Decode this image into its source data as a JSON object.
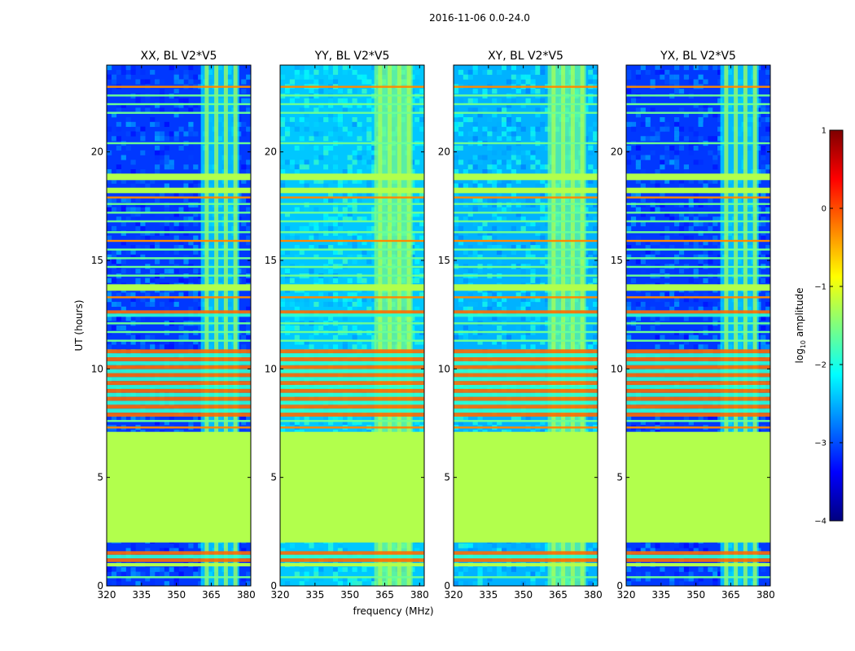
{
  "figure": {
    "suptitle": "2016-11-06 0.0-24.0",
    "xlabel": "frequency (MHz)",
    "ylabel": "UT (hours)"
  },
  "colorbar": {
    "label": "log",
    "label_sub": "10",
    "label_rest": " amplitude",
    "range": [
      -4,
      1
    ],
    "ticks": [
      1,
      0,
      -1,
      -2,
      -3,
      -4
    ],
    "tick_labels": [
      "1",
      "0",
      "−1",
      "−2",
      "−3",
      "−4"
    ],
    "colormap": "jet",
    "stops": [
      "#00007f",
      "#0000ff",
      "#007fff",
      "#00ffff",
      "#7fff7f",
      "#ffff00",
      "#ff7f00",
      "#ff0000",
      "#7f0000"
    ]
  },
  "chart_data": [
    {
      "type": "heatmap",
      "panel": 0,
      "title": "XX, BL V2*V5",
      "xlabel": "",
      "ylabel": "UT (hours)",
      "xlim": [
        320,
        382
      ],
      "ylim": [
        0,
        24
      ],
      "xticks": [
        320,
        335,
        350,
        365,
        380
      ],
      "xtick_labels": [
        "320",
        "335",
        "350",
        "365",
        "380"
      ],
      "yticks": [
        0,
        5,
        10,
        15,
        20
      ],
      "ytick_labels": [
        "0",
        "5",
        "10",
        "15",
        "20"
      ],
      "background_log_amp": -3.1,
      "rfi_band_mhz": [
        360.5,
        377
      ]
    },
    {
      "type": "heatmap",
      "panel": 1,
      "title": "YY, BL V2*V5",
      "xlabel": "frequency (MHz)",
      "ylabel": "",
      "xlim": [
        320,
        382
      ],
      "ylim": [
        0,
        24
      ],
      "xticks": [
        320,
        335,
        350,
        365,
        380
      ],
      "xtick_labels": [
        "320",
        "335",
        "350",
        "365",
        "380"
      ],
      "yticks": [
        0,
        5,
        10,
        15,
        20
      ],
      "ytick_labels": [
        "0",
        "5",
        "10",
        "15",
        "20"
      ],
      "background_log_amp": -2.4,
      "rfi_band_mhz": [
        360.5,
        377
      ]
    },
    {
      "type": "heatmap",
      "panel": 2,
      "title": "XY, BL V2*V5",
      "xlabel": "",
      "ylabel": "",
      "xlim": [
        320,
        382
      ],
      "ylim": [
        0,
        24
      ],
      "xticks": [
        320,
        335,
        350,
        365,
        380
      ],
      "xtick_labels": [
        "320",
        "335",
        "350",
        "365",
        "380"
      ],
      "yticks": [
        0,
        5,
        10,
        15,
        20
      ],
      "ytick_labels": [
        "0",
        "5",
        "10",
        "15",
        "20"
      ],
      "background_log_amp": -2.5,
      "rfi_band_mhz": [
        360.5,
        377
      ]
    },
    {
      "type": "heatmap",
      "panel": 3,
      "title": "YX, BL V2*V5",
      "xlabel": "",
      "ylabel": "",
      "xlim": [
        320,
        382
      ],
      "ylim": [
        0,
        24
      ],
      "xticks": [
        320,
        335,
        350,
        365,
        380
      ],
      "xtick_labels": [
        "320",
        "335",
        "350",
        "365",
        "380"
      ],
      "yticks": [
        0,
        5,
        10,
        15,
        20
      ],
      "ytick_labels": [
        "0",
        "5",
        "10",
        "15",
        "20"
      ],
      "background_log_amp": -3.1,
      "rfi_band_mhz": [
        360.5,
        377
      ]
    }
  ],
  "flagged_time_ranges_hours": [
    [
      2.0,
      7.1
    ],
    [
      0.9,
      1.05
    ],
    [
      13.6,
      13.9
    ],
    [
      18.7,
      19.0
    ],
    [
      18.1,
      18.35
    ]
  ],
  "bright_time_ranges_hours": [
    [
      7.8,
      10.9
    ],
    [
      1.1,
      1.6
    ],
    [
      12.4,
      12.7
    ]
  ],
  "rfi_line_hours": [
    23.0,
    22.6,
    22.2,
    21.8,
    20.4,
    17.9,
    17.6,
    17.2,
    16.8,
    16.3,
    15.9,
    15.5,
    15.1,
    14.7,
    14.3,
    13.3,
    12.1,
    11.7,
    11.3,
    7.6,
    7.3,
    0.4
  ]
}
